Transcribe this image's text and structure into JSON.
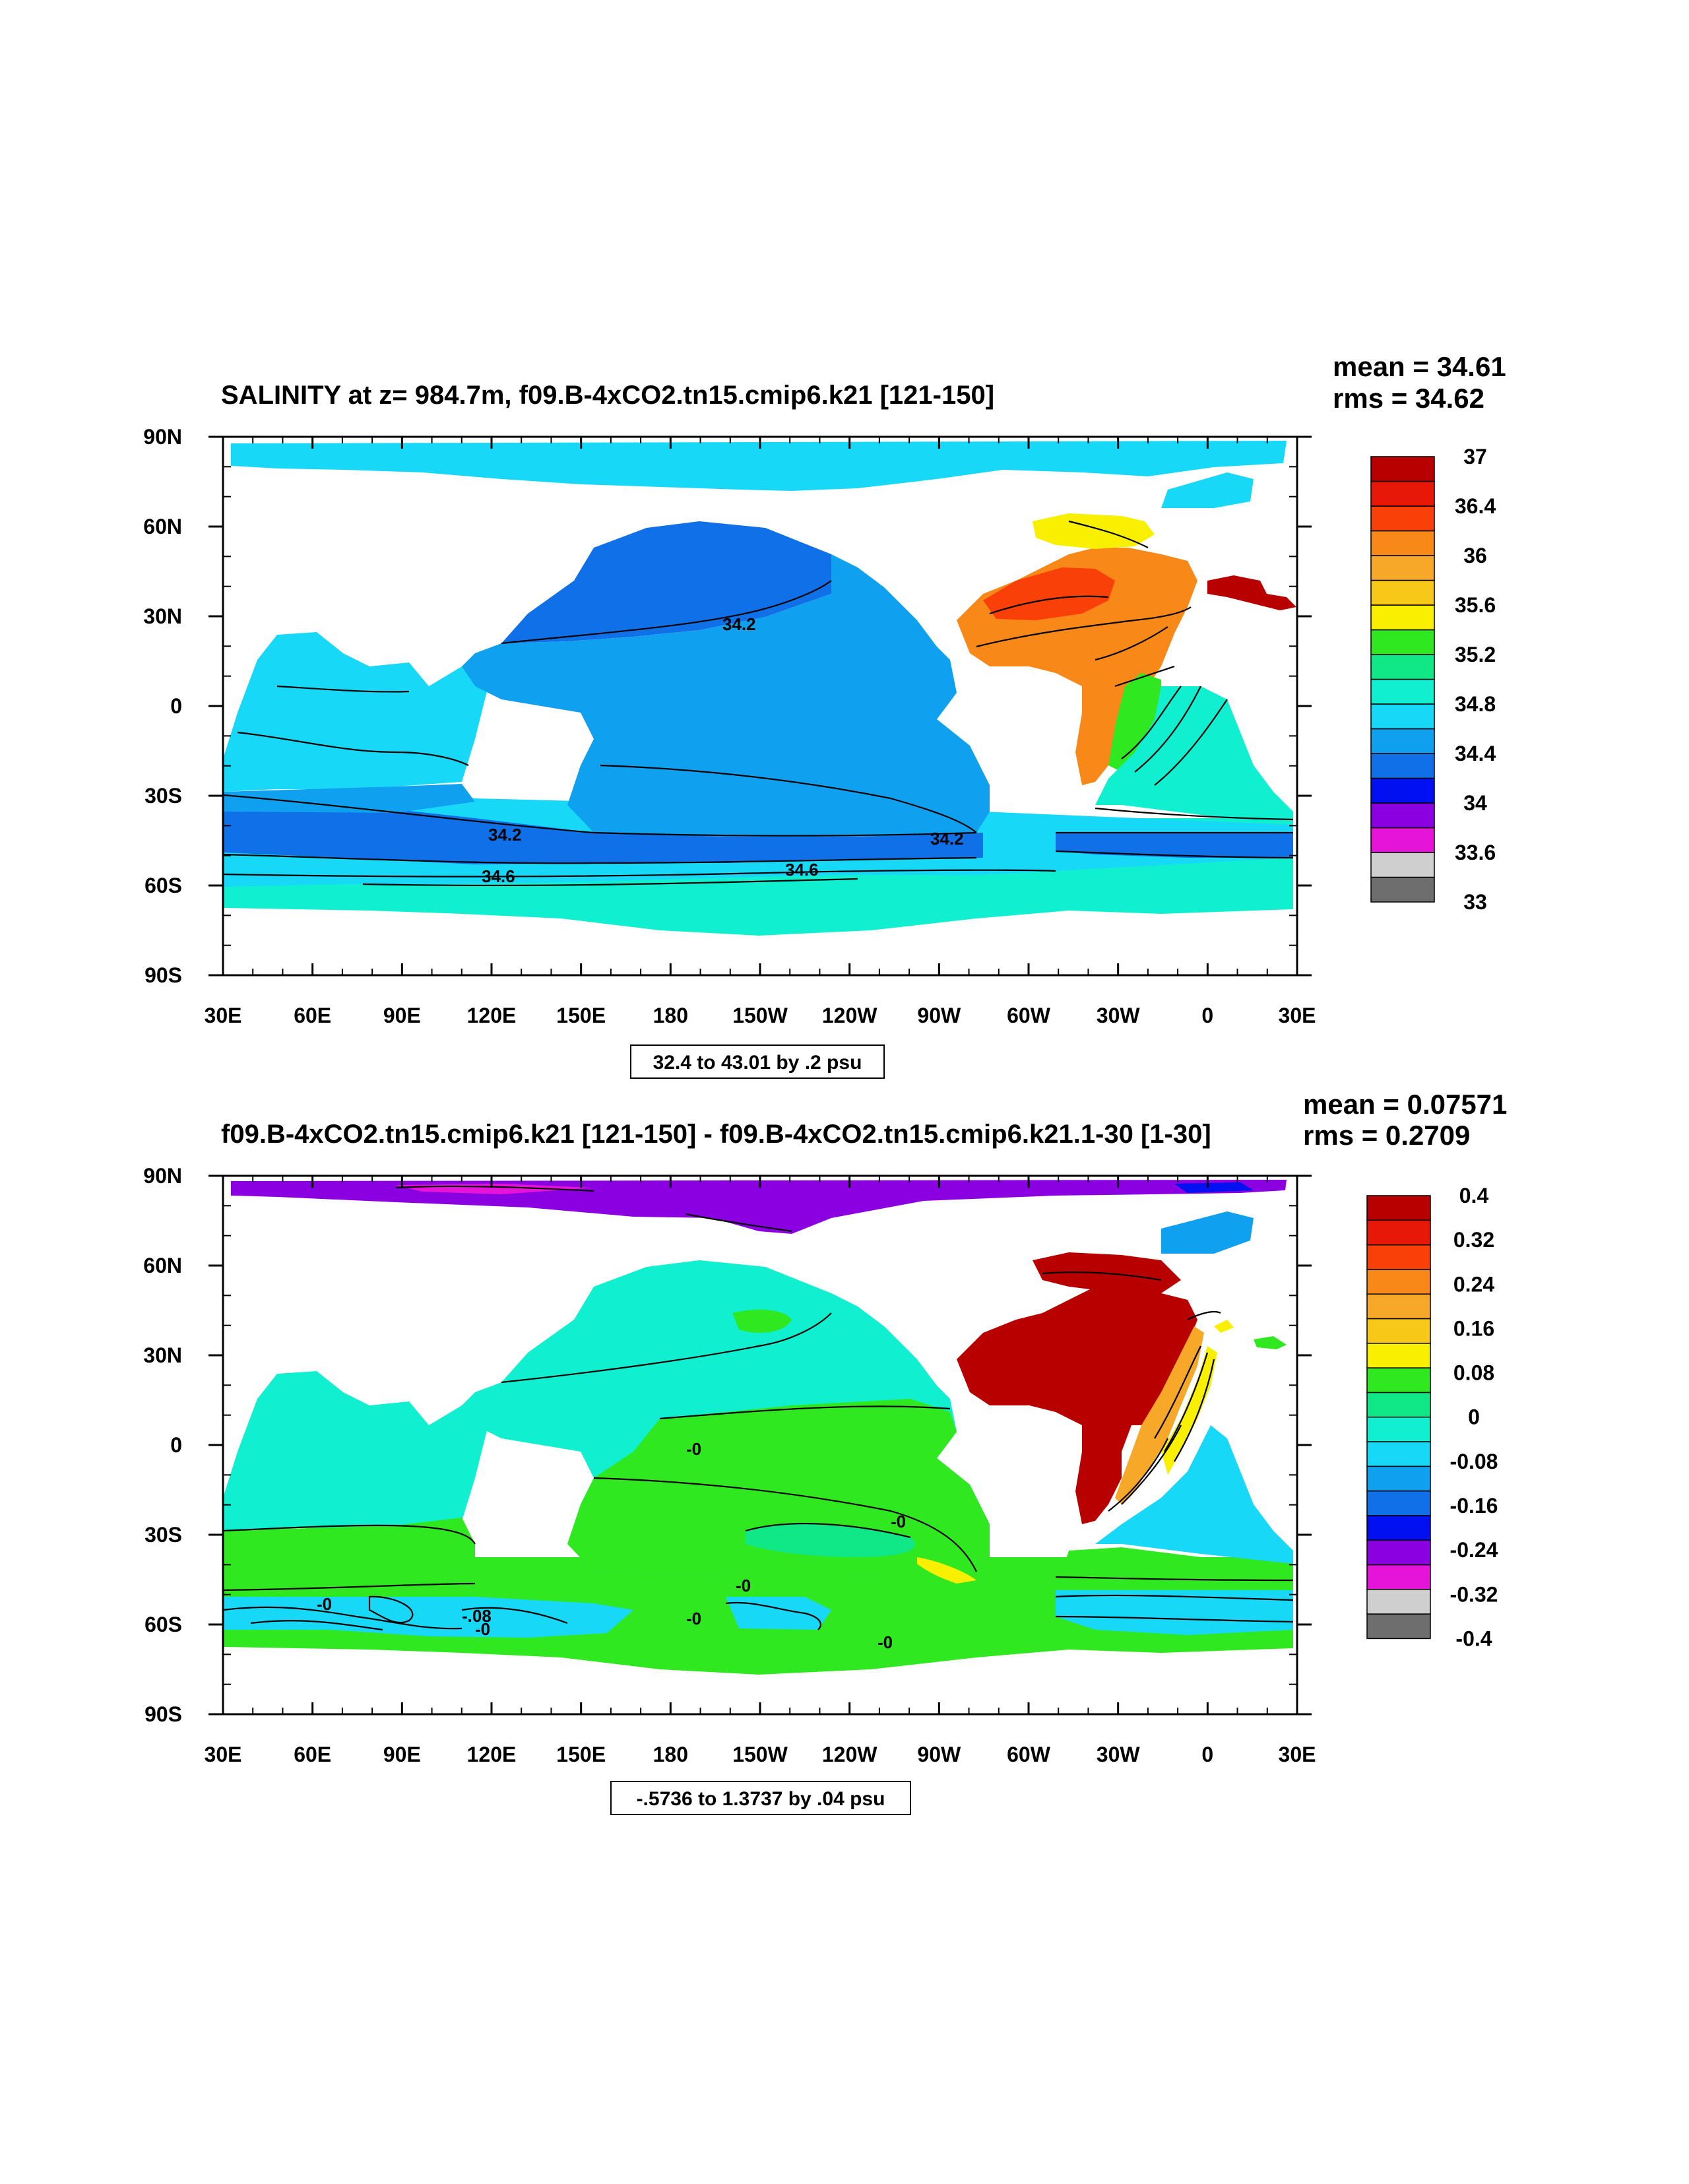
{
  "chart_data": [
    {
      "type": "heatmap",
      "title": "SALINITY at z= 984.7m, f09.B-4xCO2.tn15.cmip6.k21 [121-150]",
      "stats": {
        "mean": "mean = 34.61",
        "rms": "rms = 34.62"
      },
      "range_label": "32.4 to 43.01 by .2 psu",
      "x_ticks": [
        "30E",
        "60E",
        "90E",
        "120E",
        "150E",
        "180",
        "150W",
        "120W",
        "90W",
        "60W",
        "30W",
        "0",
        "30E"
      ],
      "y_ticks": [
        "90N",
        "60N",
        "30N",
        "0",
        "30S",
        "60S",
        "90S"
      ],
      "xlim": [
        30,
        390
      ],
      "ylim": [
        -90,
        90
      ],
      "colorbar": {
        "colors": [
          "#6e6e6e",
          "#cfcfcf",
          "#e614d8",
          "#8a00e0",
          "#0010f0",
          "#1070e8",
          "#10a0f0",
          "#18d8f8",
          "#10f0d0",
          "#10e888",
          "#30e820",
          "#f8f000",
          "#f8c818",
          "#f8a828",
          "#f88818",
          "#f84008",
          "#e81808",
          "#b80000"
        ],
        "labels": [
          "33",
          "33.6",
          "34",
          "34.4",
          "34.8",
          "35.2",
          "35.6",
          "36",
          "36.4",
          "37"
        ]
      },
      "contour_labels": [
        "34.2",
        "34.2",
        "34.2",
        "34.6",
        "34.6"
      ]
    },
    {
      "type": "heatmap",
      "title": "f09.B-4xCO2.tn15.cmip6.k21 [121-150] - f09.B-4xCO2.tn15.cmip6.k21.1-30 [1-30]",
      "stats": {
        "mean": "mean = 0.07571",
        "rms": "rms = 0.2709"
      },
      "range_label": "-.5736 to 1.3737 by .04 psu",
      "x_ticks": [
        "30E",
        "60E",
        "90E",
        "120E",
        "150E",
        "180",
        "150W",
        "120W",
        "90W",
        "60W",
        "30W",
        "0",
        "30E"
      ],
      "y_ticks": [
        "90N",
        "60N",
        "30N",
        "0",
        "30S",
        "60S",
        "90S"
      ],
      "xlim": [
        30,
        390
      ],
      "ylim": [
        -90,
        90
      ],
      "colorbar": {
        "colors": [
          "#6e6e6e",
          "#cfcfcf",
          "#e614d8",
          "#8a00e0",
          "#0010f0",
          "#1070e8",
          "#10a0f0",
          "#18d8f8",
          "#10f0d0",
          "#10e888",
          "#30e820",
          "#f8f000",
          "#f8c818",
          "#f8a828",
          "#f88818",
          "#f84008",
          "#e81808",
          "#b80000"
        ],
        "labels": [
          "-0.4",
          "-0.32",
          "-0.24",
          "-0.16",
          "-0.08",
          "0",
          "0.08",
          "0.16",
          "0.24",
          "0.32",
          "0.4"
        ]
      },
      "contour_labels": [
        "-0",
        "-0",
        "-0",
        "-0",
        "-0",
        "-0",
        "-0",
        "-.08"
      ]
    }
  ]
}
